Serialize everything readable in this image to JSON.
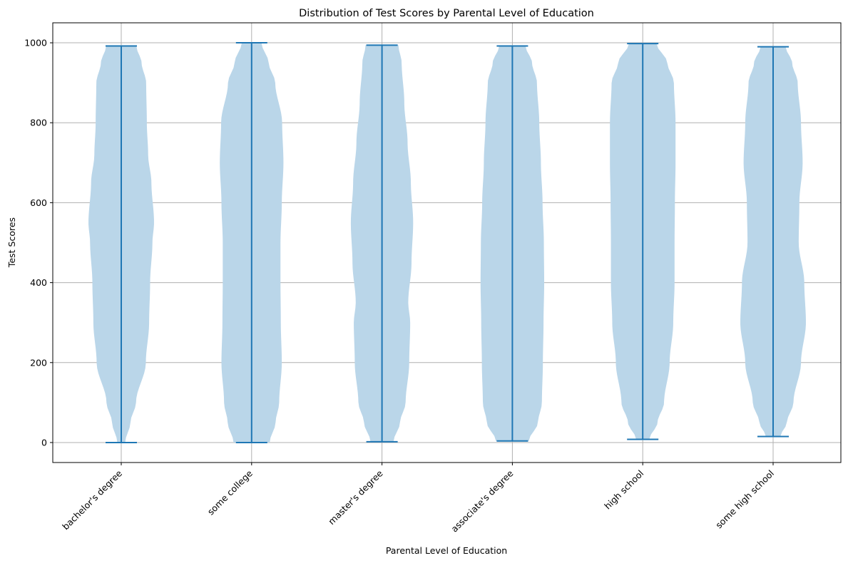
{
  "chart_data": {
    "type": "violin",
    "title": "Distribution of Test Scores by Parental Level of Education",
    "xlabel": "Parental Level of Education",
    "ylabel": "Test Scores",
    "ylim": [
      -50,
      1050
    ],
    "yticks": [
      0,
      200,
      400,
      600,
      800,
      1000
    ],
    "grid": true,
    "categories": [
      "bachelor's degree",
      "some college",
      "master's degree",
      "associate's degree",
      "high school",
      "some high school"
    ],
    "violins": [
      {
        "category": "bachelor's degree",
        "min": 0,
        "max": 992,
        "density": [
          [
            0,
            0.12
          ],
          [
            50,
            0.28
          ],
          [
            100,
            0.45
          ],
          [
            200,
            0.75
          ],
          [
            300,
            0.85
          ],
          [
            400,
            0.88
          ],
          [
            500,
            0.95
          ],
          [
            550,
            1.0
          ],
          [
            650,
            0.92
          ],
          [
            720,
            0.82
          ],
          [
            800,
            0.78
          ],
          [
            900,
            0.76
          ],
          [
            950,
            0.62
          ],
          [
            992,
            0.46
          ]
        ]
      },
      {
        "category": "some college",
        "min": 0,
        "max": 1000,
        "density": [
          [
            0,
            0.55
          ],
          [
            50,
            0.73
          ],
          [
            100,
            0.84
          ],
          [
            200,
            0.92
          ],
          [
            300,
            0.89
          ],
          [
            400,
            0.88
          ],
          [
            500,
            0.88
          ],
          [
            600,
            0.92
          ],
          [
            700,
            0.97
          ],
          [
            800,
            0.93
          ],
          [
            900,
            0.72
          ],
          [
            950,
            0.52
          ],
          [
            1000,
            0.3
          ]
        ]
      },
      {
        "category": "master's degree",
        "min": 2,
        "max": 994,
        "density": [
          [
            2,
            0.35
          ],
          [
            50,
            0.55
          ],
          [
            100,
            0.72
          ],
          [
            200,
            0.83
          ],
          [
            300,
            0.86
          ],
          [
            350,
            0.8
          ],
          [
            450,
            0.9
          ],
          [
            550,
            0.95
          ],
          [
            650,
            0.88
          ],
          [
            750,
            0.78
          ],
          [
            850,
            0.68
          ],
          [
            950,
            0.6
          ],
          [
            994,
            0.5
          ]
        ]
      },
      {
        "category": "associate's degree",
        "min": 4,
        "max": 992,
        "density": [
          [
            4,
            0.5
          ],
          [
            50,
            0.78
          ],
          [
            100,
            0.9
          ],
          [
            200,
            0.93
          ],
          [
            300,
            0.95
          ],
          [
            400,
            0.97
          ],
          [
            500,
            0.96
          ],
          [
            600,
            0.92
          ],
          [
            700,
            0.87
          ],
          [
            800,
            0.82
          ],
          [
            900,
            0.75
          ],
          [
            950,
            0.6
          ],
          [
            992,
            0.4
          ]
        ]
      },
      {
        "category": "high school",
        "min": 8,
        "max": 998,
        "density": [
          [
            8,
            0.2
          ],
          [
            50,
            0.45
          ],
          [
            100,
            0.65
          ],
          [
            200,
            0.82
          ],
          [
            300,
            0.93
          ],
          [
            400,
            0.97
          ],
          [
            500,
            0.97
          ],
          [
            600,
            0.98
          ],
          [
            700,
            1.0
          ],
          [
            800,
            1.0
          ],
          [
            900,
            0.95
          ],
          [
            950,
            0.75
          ],
          [
            998,
            0.42
          ]
        ]
      },
      {
        "category": "some high school",
        "min": 15,
        "max": 990,
        "density": [
          [
            15,
            0.22
          ],
          [
            50,
            0.42
          ],
          [
            100,
            0.62
          ],
          [
            200,
            0.85
          ],
          [
            300,
            1.0
          ],
          [
            400,
            0.95
          ],
          [
            500,
            0.78
          ],
          [
            600,
            0.8
          ],
          [
            700,
            0.9
          ],
          [
            800,
            0.85
          ],
          [
            900,
            0.75
          ],
          [
            950,
            0.58
          ],
          [
            990,
            0.38
          ]
        ]
      }
    ],
    "colors": {
      "body": "#bad6e9",
      "line": "#1f77b4",
      "grid": "#b0b0b0"
    }
  }
}
